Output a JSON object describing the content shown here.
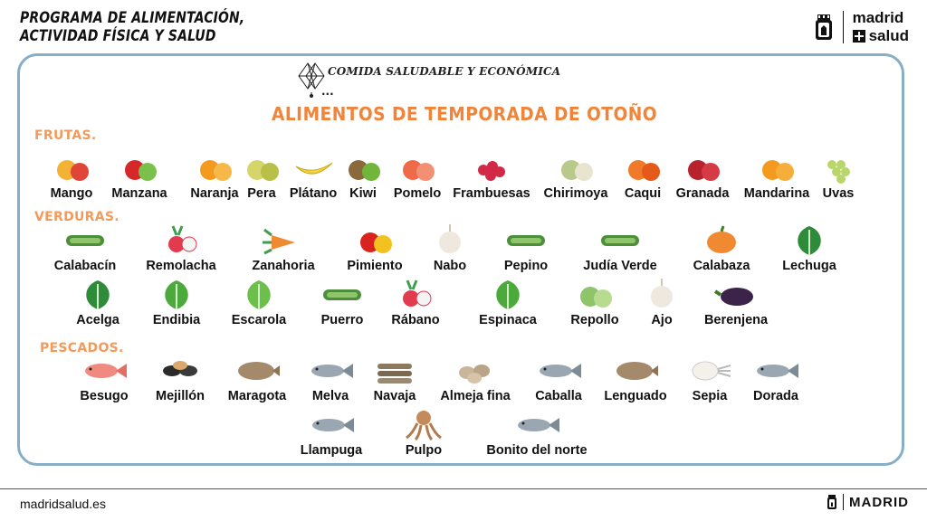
{
  "header": {
    "program_line1": "Programa de alimentación,",
    "program_line2": "actividad física y salud",
    "logo_line1": "madrid",
    "logo_line2": "salud"
  },
  "poster": {
    "subtitle": "COMIDA SALUDABLE Y ECONÓMICA",
    "dots": "...",
    "title": "ALIMENTOS DE TEMPORADA DE OTOÑO",
    "sections": {
      "frutas": "FRUTAS.",
      "verduras": "VERDURAS.",
      "pescados": "PESCADOS."
    },
    "frutas": [
      "Mango",
      "Manzana",
      "Naranja",
      "Pera",
      "Plátano",
      "Kiwi",
      "Pomelo",
      "Frambuesas",
      "Chirimoya",
      "Caqui",
      "Granada",
      "Mandarina",
      "Uvas"
    ],
    "verduras_row1": [
      "Calabacín",
      "Remolacha",
      "Zanahoria",
      "Pimiento",
      "Nabo",
      "Pepino",
      "Judía Verde",
      "Calabaza",
      "Lechuga"
    ],
    "verduras_row2": [
      "Acelga",
      "Endibia",
      "Escarola",
      "Puerro",
      "Rábano",
      "Espinaca",
      "Repollo",
      "Ajo",
      "Berenjena"
    ],
    "pescados_row1": [
      "Besugo",
      "Mejillón",
      "Maragota",
      "Melva",
      "Navaja",
      "Almeja fina",
      "Caballa",
      "Lenguado",
      "Sepia",
      "Dorada"
    ],
    "pescados_row2": [
      "Llampuga",
      "Pulpo",
      "Bonito del norte"
    ]
  },
  "footer": {
    "website": "madridsalud.es",
    "brand": "MADRID"
  },
  "colors": {
    "title_orange": "#f0843a",
    "section_orange": "#f29a5a",
    "frame_blue": "#86aec6"
  }
}
